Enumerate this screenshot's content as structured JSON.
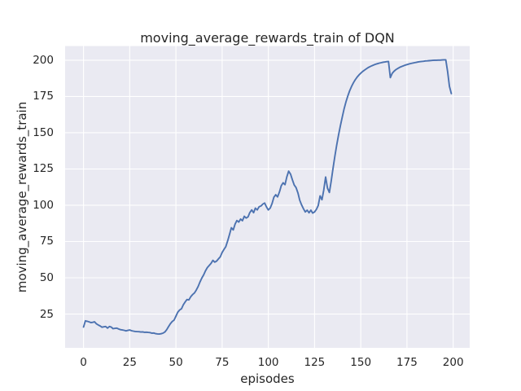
{
  "chart_data": {
    "type": "line",
    "title": "moving_average_rewards_train of DQN",
    "xlabel": "episodes",
    "ylabel": "moving_average_rewards_train",
    "xticks": [
      0,
      25,
      50,
      75,
      100,
      125,
      150,
      175,
      200
    ],
    "yticks": [
      25,
      50,
      75,
      100,
      125,
      150,
      175,
      200
    ],
    "xlim": [
      -9.95,
      208.95
    ],
    "ylim": [
      1.7,
      209.8
    ],
    "grid": true,
    "legend": false,
    "style": {
      "figure_bg": "#ffffff",
      "plot_bg": "#eaeaf2",
      "grid_color": "#ffffff",
      "text_color": "#262626",
      "line_color": "#4c72b0",
      "line_width": 1.9
    },
    "series": [
      {
        "name": "moving_average_rewards_train",
        "color": "#4c72b0",
        "x_start": 0,
        "x_step": 1,
        "values": [
          16.0,
          20.3,
          20.0,
          19.6,
          19.1,
          19.3,
          19.6,
          18.2,
          17.4,
          16.8,
          15.9,
          16.2,
          16.4,
          15.3,
          16.4,
          16.0,
          14.9,
          15.1,
          15.3,
          14.7,
          14.2,
          14.0,
          13.8,
          13.4,
          13.7,
          14.0,
          13.5,
          13.2,
          13.0,
          12.9,
          12.8,
          12.6,
          12.7,
          12.4,
          12.5,
          12.3,
          12.2,
          11.8,
          11.9,
          11.5,
          11.3,
          11.2,
          11.4,
          11.8,
          12.6,
          14.2,
          16.3,
          18.3,
          19.9,
          20.8,
          23.5,
          26.3,
          27.8,
          28.6,
          31.4,
          33.4,
          35.0,
          34.7,
          36.9,
          38.4,
          39.5,
          41.5,
          44.0,
          47.0,
          49.8,
          52.0,
          54.8,
          57.0,
          58.5,
          60.0,
          62.0,
          60.8,
          61.5,
          63.0,
          64.5,
          67.5,
          69.5,
          71.5,
          75.5,
          80.0,
          84.5,
          83.0,
          87.0,
          89.5,
          88.4,
          90.5,
          89.3,
          92.4,
          91.2,
          92.0,
          95.0,
          96.8,
          94.9,
          98.0,
          96.8,
          99.0,
          99.5,
          100.8,
          101.5,
          98.8,
          96.8,
          98.0,
          101.2,
          105.5,
          107.3,
          105.8,
          109.2,
          113.5,
          115.5,
          114.2,
          119.5,
          123.5,
          121.5,
          117.5,
          114.0,
          112.2,
          108.5,
          103.5,
          100.2,
          97.6,
          95.4,
          96.6,
          94.8,
          96.6,
          94.6,
          95.4,
          97.2,
          99.8,
          106.5,
          103.8,
          110.5,
          119.5,
          111.8,
          108.8,
          116.5,
          125.5,
          134.0,
          141.5,
          148.5,
          155.0,
          161.0,
          166.5,
          171.3,
          175.4,
          178.9,
          181.9,
          184.4,
          186.5,
          188.3,
          189.8,
          191.1,
          192.2,
          193.2,
          194.1,
          194.9,
          195.6,
          196.2,
          196.7,
          197.2,
          197.6,
          198.0,
          198.3,
          198.6,
          198.8,
          199.0,
          199.2,
          188.0,
          191.0,
          192.4,
          193.5,
          194.3,
          195.0,
          195.6,
          196.1,
          196.6,
          197.0,
          197.4,
          197.7,
          198.0,
          198.3,
          198.5,
          198.8,
          199.0,
          199.2,
          199.3,
          199.5,
          199.6,
          199.7,
          199.8,
          199.9,
          200.0,
          200.0,
          200.1,
          200.1,
          200.2,
          200.3,
          200.3,
          192.0,
          182.0,
          177.0
        ]
      }
    ]
  }
}
